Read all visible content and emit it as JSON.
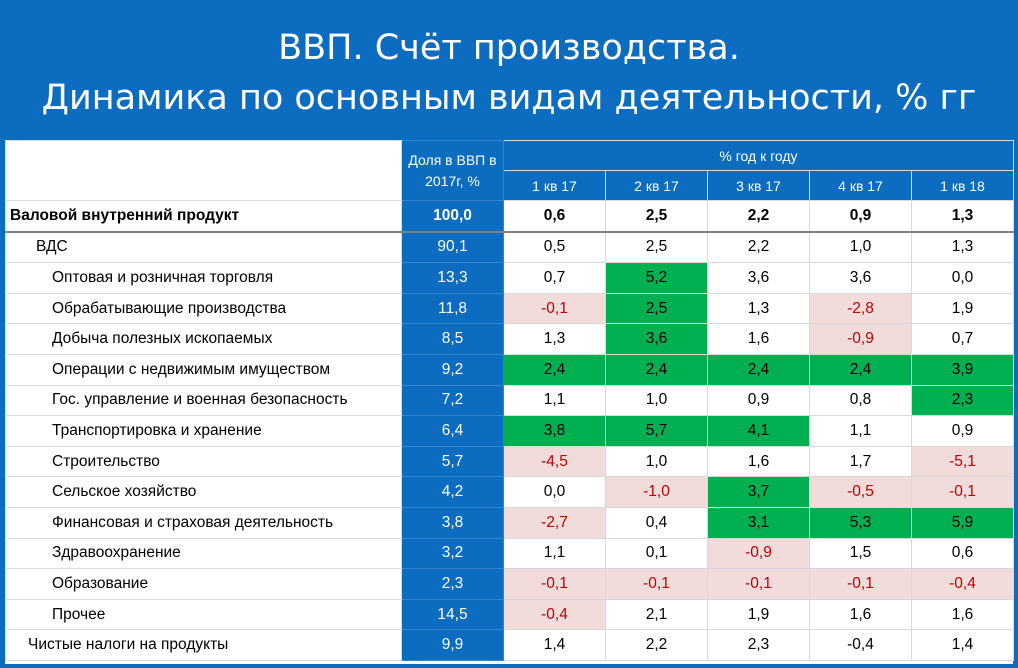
{
  "title": {
    "line1": "ВВП. Счёт производства.",
    "line2": "Динамика по основным видам деятельности, % гг"
  },
  "table": {
    "share_header": "Доля в ВВП в 2017г, %",
    "group_header": "% год к году",
    "quarters": [
      "1 кв 17",
      "2 кв 17",
      "3 кв 17",
      "4 кв 17",
      "1 кв 18"
    ],
    "colors": {
      "positive_highlight": "#00B050",
      "negative_highlight": "#F2DCDB",
      "negative_text": "#C00000",
      "header_blue": "#0B6CC0"
    },
    "rows": [
      {
        "label": "Валовой внутренний продукт",
        "share": "100,0",
        "bold": true,
        "indent": 0,
        "values": [
          {
            "v": "0,6",
            "h": ""
          },
          {
            "v": "2,5",
            "h": ""
          },
          {
            "v": "2,2",
            "h": ""
          },
          {
            "v": "0,9",
            "h": ""
          },
          {
            "v": "1,3",
            "h": ""
          }
        ]
      },
      {
        "label": "ВДС",
        "share": "90,1",
        "indent": 1,
        "values": [
          {
            "v": "0,5",
            "h": ""
          },
          {
            "v": "2,5",
            "h": ""
          },
          {
            "v": "2,2",
            "h": ""
          },
          {
            "v": "1,0",
            "h": ""
          },
          {
            "v": "1,3",
            "h": ""
          }
        ]
      },
      {
        "label": "Оптовая и розничная торговля",
        "share": "13,3",
        "indent": 2,
        "values": [
          {
            "v": "0,7",
            "h": ""
          },
          {
            "v": "5,2",
            "h": "g"
          },
          {
            "v": "3,6",
            "h": ""
          },
          {
            "v": "3,6",
            "h": ""
          },
          {
            "v": "0,0",
            "h": ""
          }
        ]
      },
      {
        "label": "Обрабатывающие производства",
        "share": "11,8",
        "indent": 2,
        "values": [
          {
            "v": "-0,1",
            "h": "p"
          },
          {
            "v": "2,5",
            "h": "g"
          },
          {
            "v": "1,3",
            "h": ""
          },
          {
            "v": "-2,8",
            "h": "p"
          },
          {
            "v": "1,9",
            "h": ""
          }
        ]
      },
      {
        "label": "Добыча полезных ископаемых",
        "share": "8,5",
        "indent": 2,
        "values": [
          {
            "v": "1,3",
            "h": ""
          },
          {
            "v": "3,6",
            "h": "g"
          },
          {
            "v": "1,6",
            "h": ""
          },
          {
            "v": "-0,9",
            "h": "p"
          },
          {
            "v": "0,7",
            "h": ""
          }
        ]
      },
      {
        "label": "Операции с недвижимым имуществом",
        "share": "9,2",
        "indent": 2,
        "values": [
          {
            "v": "2,4",
            "h": "g"
          },
          {
            "v": "2,4",
            "h": "g"
          },
          {
            "v": "2,4",
            "h": "g"
          },
          {
            "v": "2,4",
            "h": "g"
          },
          {
            "v": "3,9",
            "h": "g"
          }
        ]
      },
      {
        "label": "Гос. управление и военная безопасность",
        "share": "7,2",
        "indent": 2,
        "values": [
          {
            "v": "1,1",
            "h": ""
          },
          {
            "v": "1,0",
            "h": ""
          },
          {
            "v": "0,9",
            "h": ""
          },
          {
            "v": "0,8",
            "h": ""
          },
          {
            "v": "2,3",
            "h": "g"
          }
        ]
      },
      {
        "label": "Транспортировка и хранение",
        "share": "6,4",
        "indent": 2,
        "values": [
          {
            "v": "3,8",
            "h": "g"
          },
          {
            "v": "5,7",
            "h": "g"
          },
          {
            "v": "4,1",
            "h": "g"
          },
          {
            "v": "1,1",
            "h": ""
          },
          {
            "v": "0,9",
            "h": ""
          }
        ]
      },
      {
        "label": "Строительство",
        "share": "5,7",
        "indent": 2,
        "values": [
          {
            "v": "-4,5",
            "h": "p"
          },
          {
            "v": "1,0",
            "h": ""
          },
          {
            "v": "1,6",
            "h": ""
          },
          {
            "v": "1,7",
            "h": ""
          },
          {
            "v": "-5,1",
            "h": "p"
          }
        ]
      },
      {
        "label": "Сельское хозяйство",
        "share": "4,2",
        "indent": 2,
        "values": [
          {
            "v": "0,0",
            "h": ""
          },
          {
            "v": "-1,0",
            "h": "p"
          },
          {
            "v": "3,7",
            "h": "g"
          },
          {
            "v": "-0,5",
            "h": "p"
          },
          {
            "v": "-0,1",
            "h": "p"
          }
        ]
      },
      {
        "label": "Финансовая и страховая деятельность",
        "share": "3,8",
        "indent": 2,
        "values": [
          {
            "v": "-2,7",
            "h": "p"
          },
          {
            "v": "0,4",
            "h": ""
          },
          {
            "v": "3,1",
            "h": "g"
          },
          {
            "v": "5,3",
            "h": "g"
          },
          {
            "v": "5,9",
            "h": "g"
          }
        ]
      },
      {
        "label": "Здравоохранение",
        "share": "3,2",
        "indent": 2,
        "values": [
          {
            "v": "1,1",
            "h": ""
          },
          {
            "v": "0,1",
            "h": ""
          },
          {
            "v": "-0,9",
            "h": "p"
          },
          {
            "v": "1,5",
            "h": ""
          },
          {
            "v": "0,6",
            "h": ""
          }
        ]
      },
      {
        "label": "Образование",
        "share": "2,3",
        "indent": 2,
        "values": [
          {
            "v": "-0,1",
            "h": "p"
          },
          {
            "v": "-0,1",
            "h": "p"
          },
          {
            "v": "-0,1",
            "h": "p"
          },
          {
            "v": "-0,1",
            "h": "p"
          },
          {
            "v": "-0,4",
            "h": "p"
          }
        ]
      },
      {
        "label": "Прочее",
        "share": "14,5",
        "indent": 2,
        "values": [
          {
            "v": "-0,4",
            "h": "p"
          },
          {
            "v": "2,1",
            "h": ""
          },
          {
            "v": "1,9",
            "h": ""
          },
          {
            "v": "1,6",
            "h": ""
          },
          {
            "v": "1,6",
            "h": ""
          }
        ]
      },
      {
        "label": "Чистые налоги на продукты",
        "share": "9,9",
        "indent": 3,
        "values": [
          {
            "v": "1,4",
            "h": ""
          },
          {
            "v": "2,2",
            "h": ""
          },
          {
            "v": "2,3",
            "h": ""
          },
          {
            "v": "-0,4",
            "h": ""
          },
          {
            "v": "1,4",
            "h": ""
          }
        ]
      }
    ]
  }
}
